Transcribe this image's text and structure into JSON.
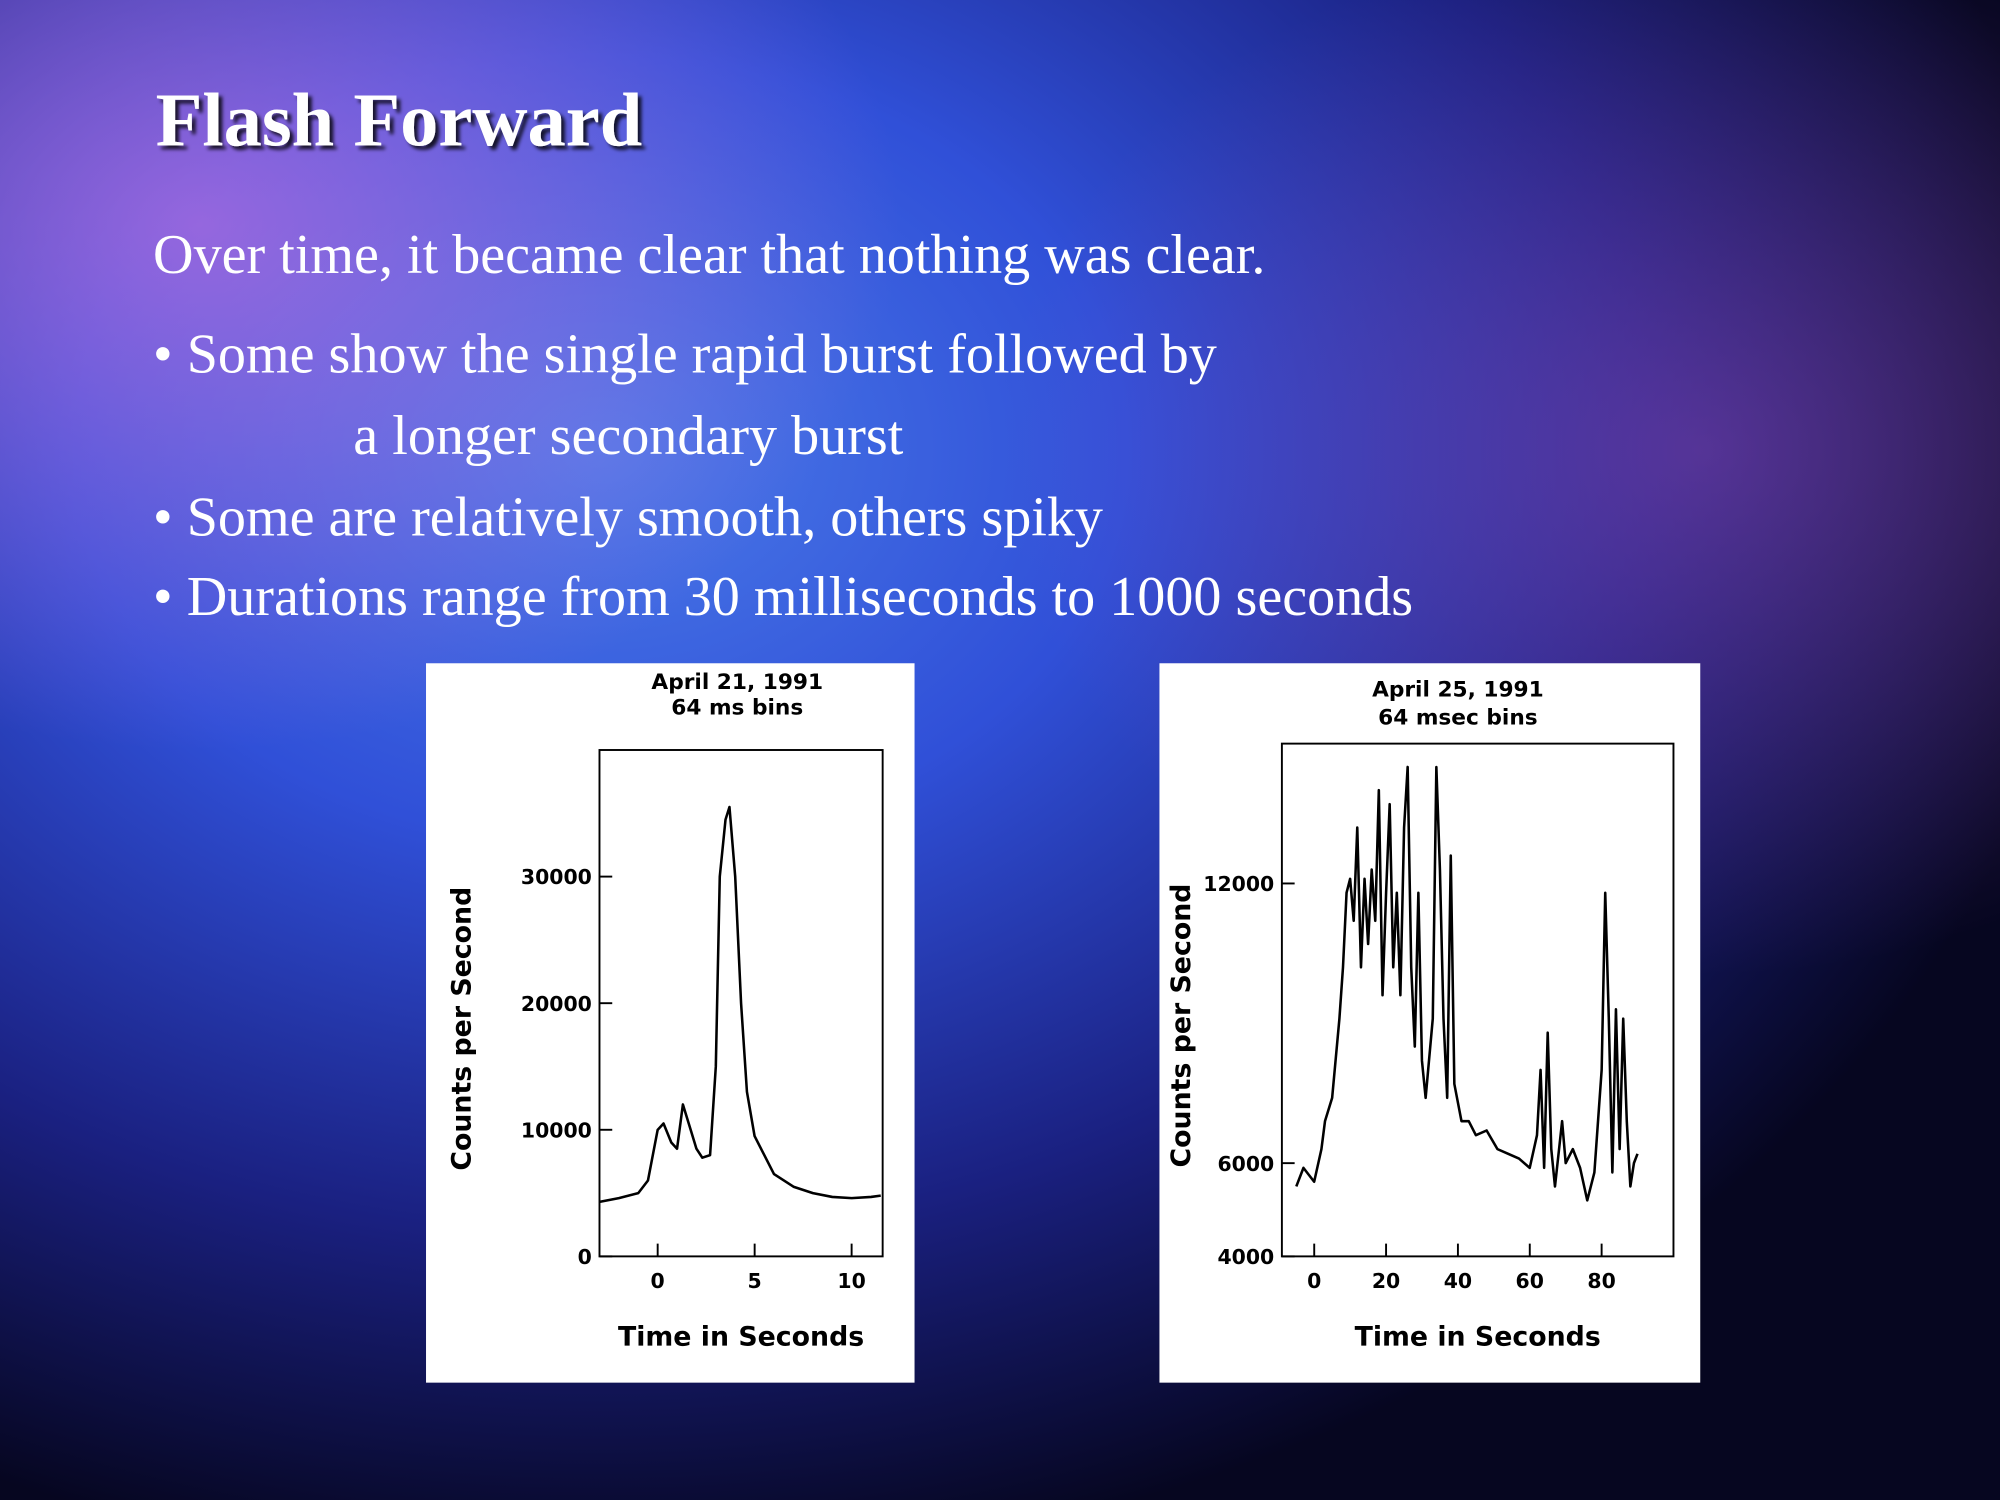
{
  "slide": {
    "title": "Flash Forward",
    "intro": "Over time, it became clear that nothing was clear.",
    "bullets": [
      [
        "• Some show the single rapid burst followed by",
        "a longer secondary burst"
      ],
      [
        "• Some are relatively smooth, others spiky"
      ],
      [
        "• Durations range from 30 milliseconds to 1000 seconds"
      ]
    ]
  },
  "chart_data": [
    {
      "type": "line",
      "title": "April 21, 1991",
      "subtitle": "64 ms bins",
      "x_label": "Time in Seconds",
      "y_label": "Counts per Second",
      "color": "#000000",
      "x": [
        -3,
        -2,
        -1,
        -0.5,
        0,
        0.3,
        0.7,
        1,
        1.3,
        1.7,
        2,
        2.3,
        2.7,
        3,
        3.2,
        3.5,
        3.7,
        4,
        4.3,
        4.6,
        5,
        5.5,
        6,
        7,
        8,
        9,
        10,
        11,
        11.5
      ],
      "values": [
        4300,
        4600,
        5000,
        6000,
        10000,
        10500,
        9000,
        8500,
        12000,
        10000,
        8500,
        7800,
        8000,
        15000,
        30000,
        34500,
        35500,
        30000,
        20000,
        13000,
        9500,
        8000,
        6500,
        5500,
        5000,
        4700,
        4600,
        4700,
        4800
      ],
      "xlim": [
        -3,
        11.6
      ],
      "xticks": [
        0,
        5,
        10
      ],
      "ylim": [
        0,
        40000
      ],
      "yticks": [
        0,
        10000,
        20000,
        30000
      ]
    },
    {
      "type": "line",
      "title": "April 25, 1991",
      "subtitle": "64 msec bins",
      "x_label": "Time in Seconds",
      "y_label": "Counts per Second",
      "color": "#000000",
      "x": [
        -5,
        -3,
        0,
        2,
        3,
        5,
        7,
        8,
        9,
        10,
        11,
        12,
        13,
        14,
        15,
        16,
        17,
        18,
        19,
        20,
        21,
        22,
        23,
        24,
        25,
        26,
        27,
        28,
        29,
        30,
        31,
        33,
        34,
        35,
        36,
        37,
        38,
        39,
        41,
        43,
        45,
        48,
        51,
        54,
        57,
        60,
        62,
        63,
        64,
        65,
        66,
        67,
        69,
        70,
        72,
        74,
        76,
        78,
        80,
        81,
        82,
        83,
        84,
        85,
        86,
        87,
        88,
        89,
        90
      ],
      "values": [
        5500,
        5900,
        5600,
        6300,
        6900,
        7400,
        9100,
        10200,
        11800,
        12100,
        11200,
        13200,
        10200,
        12100,
        10700,
        12300,
        11200,
        14000,
        9600,
        11800,
        13700,
        10200,
        11800,
        9600,
        13200,
        14500,
        10200,
        8500,
        11800,
        8200,
        7400,
        9100,
        14500,
        12300,
        9100,
        7400,
        12600,
        7700,
        6900,
        6900,
        6600,
        6700,
        6300,
        6200,
        6100,
        5900,
        6600,
        8000,
        5900,
        8800,
        6300,
        5500,
        6900,
        6000,
        6300,
        5900,
        5200,
        5800,
        8000,
        11800,
        9100,
        5800,
        9300,
        6300,
        9100,
        6900,
        5500,
        6000,
        6200
      ],
      "xlim": [
        -9,
        100
      ],
      "xticks": [
        0,
        20,
        40,
        60,
        80
      ],
      "ylim": [
        4000,
        15000
      ],
      "yticks": [
        4000,
        6000,
        12000
      ]
    }
  ]
}
